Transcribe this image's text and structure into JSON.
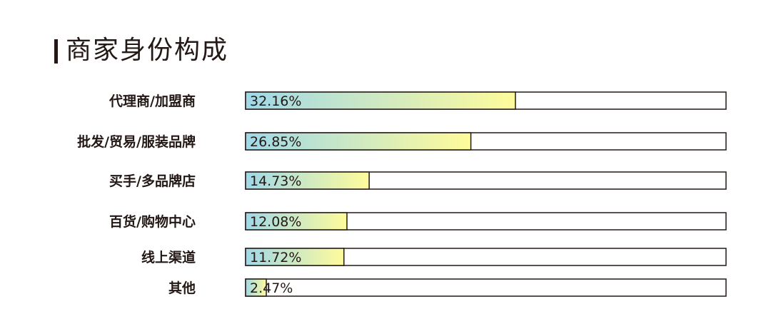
{
  "title": "商家身份构成",
  "colors": {
    "gradient_start": "#9fd8e8",
    "gradient_end": "#fffb9b",
    "outline": "#231815",
    "text": "#231815"
  },
  "chart_data": {
    "type": "bar",
    "orientation": "horizontal",
    "title": "商家身份构成",
    "xlim": [
      0,
      100
    ],
    "grid": false,
    "categories": [
      "代理商/加盟商",
      "批发/贸易/服装品牌",
      "买手/多品牌店",
      "百货/购物中心",
      "线上渠道",
      "其他"
    ],
    "values": [
      32.16,
      26.85,
      14.73,
      12.08,
      11.72,
      2.47
    ],
    "value_labels": [
      "32.16%",
      "26.85%",
      "14.73%",
      "12.08%",
      "11.72%",
      "2.47%"
    ]
  }
}
